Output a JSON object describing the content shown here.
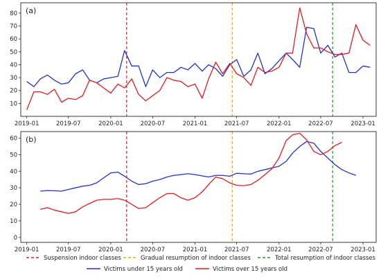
{
  "chart_data": [
    {
      "type": "line",
      "panel_label": "(a)",
      "x_tick_labels": [
        "2019-01",
        "2019-07",
        "2020-01",
        "2020-07",
        "2021-01",
        "2021-07",
        "2022-01",
        "2022-07",
        "2023-01"
      ],
      "x_tick_dates": [
        "2019-01-01",
        "2019-07-01",
        "2020-01-01",
        "2020-07-01",
        "2021-01-01",
        "2021-07-01",
        "2022-01-01",
        "2022-07-01",
        "2023-01-01"
      ],
      "xlim": [
        "2018-12-06",
        "2023-02-27"
      ],
      "ylim": [
        0,
        88
      ],
      "y_ticks": [
        10,
        20,
        30,
        40,
        50,
        60,
        70,
        80
      ],
      "y_tick_labels": [
        "10",
        "20",
        "30",
        "40",
        "50",
        "60",
        "70",
        "80"
      ],
      "vlines": [
        {
          "date": "2020-03-10",
          "color": "#e31a1c"
        },
        {
          "date": "2021-06-12",
          "color": "#f0a500"
        },
        {
          "date": "2022-08-22",
          "color": "#1a9a1a"
        }
      ],
      "series": [
        {
          "name": "Victims under 15 years old",
          "color": "#1f2fd0",
          "points": [
            [
              "2019-01-01",
              27
            ],
            [
              "2019-02-01",
              23
            ],
            [
              "2019-03-01",
              29
            ],
            [
              "2019-04-01",
              32
            ],
            [
              "2019-05-01",
              28
            ],
            [
              "2019-06-01",
              25
            ],
            [
              "2019-07-01",
              26
            ],
            [
              "2019-08-01",
              33
            ],
            [
              "2019-09-01",
              36
            ],
            [
              "2019-10-01",
              28
            ],
            [
              "2019-11-01",
              26
            ],
            [
              "2019-12-01",
              29
            ],
            [
              "2020-01-01",
              30
            ],
            [
              "2020-02-01",
              31
            ],
            [
              "2020-03-01",
              51
            ],
            [
              "2020-04-01",
              39
            ],
            [
              "2020-05-01",
              39
            ],
            [
              "2020-06-01",
              23
            ],
            [
              "2020-07-01",
              36
            ],
            [
              "2020-08-01",
              30
            ],
            [
              "2020-09-01",
              34
            ],
            [
              "2020-10-01",
              34
            ],
            [
              "2020-11-01",
              38
            ],
            [
              "2020-12-01",
              36
            ],
            [
              "2021-01-01",
              41
            ],
            [
              "2021-02-01",
              35
            ],
            [
              "2021-03-01",
              40
            ],
            [
              "2021-04-01",
              37
            ],
            [
              "2021-05-01",
              31
            ],
            [
              "2021-06-01",
              40
            ],
            [
              "2021-07-01",
              44
            ],
            [
              "2021-08-01",
              31
            ],
            [
              "2021-09-01",
              36
            ],
            [
              "2021-10-01",
              49
            ],
            [
              "2021-11-01",
              33
            ],
            [
              "2021-12-01",
              37
            ],
            [
              "2022-01-01",
              43
            ],
            [
              "2022-02-01",
              49
            ],
            [
              "2022-03-01",
              44
            ],
            [
              "2022-04-01",
              38
            ],
            [
              "2022-05-01",
              69
            ],
            [
              "2022-06-01",
              68
            ],
            [
              "2022-07-01",
              49
            ],
            [
              "2022-08-01",
              55
            ],
            [
              "2022-09-01",
              46
            ],
            [
              "2022-10-01",
              49
            ],
            [
              "2022-11-01",
              34
            ],
            [
              "2022-12-01",
              34
            ],
            [
              "2023-01-01",
              39
            ],
            [
              "2023-02-01",
              38
            ]
          ]
        },
        {
          "name": "Victims over 15 years old",
          "color": "#e8171c",
          "points": [
            [
              "2019-01-01",
              5
            ],
            [
              "2019-02-01",
              19
            ],
            [
              "2019-03-01",
              19
            ],
            [
              "2019-04-01",
              17
            ],
            [
              "2019-05-01",
              21
            ],
            [
              "2019-06-01",
              11
            ],
            [
              "2019-07-01",
              14
            ],
            [
              "2019-08-01",
              13
            ],
            [
              "2019-09-01",
              16
            ],
            [
              "2019-10-01",
              28
            ],
            [
              "2019-11-01",
              26
            ],
            [
              "2019-12-01",
              22
            ],
            [
              "2020-01-01",
              18
            ],
            [
              "2020-02-01",
              25
            ],
            [
              "2020-03-01",
              22
            ],
            [
              "2020-04-01",
              29
            ],
            [
              "2020-05-01",
              17
            ],
            [
              "2020-06-01",
              12
            ],
            [
              "2020-07-01",
              16
            ],
            [
              "2020-08-01",
              20
            ],
            [
              "2020-09-01",
              30
            ],
            [
              "2020-10-01",
              28
            ],
            [
              "2020-11-01",
              27
            ],
            [
              "2020-12-01",
              23
            ],
            [
              "2021-01-01",
              25
            ],
            [
              "2021-02-01",
              14
            ],
            [
              "2021-03-01",
              29
            ],
            [
              "2021-04-01",
              42
            ],
            [
              "2021-05-01",
              33
            ],
            [
              "2021-06-01",
              41
            ],
            [
              "2021-07-01",
              33
            ],
            [
              "2021-08-01",
              30
            ],
            [
              "2021-09-01",
              24
            ],
            [
              "2021-10-01",
              38
            ],
            [
              "2021-11-01",
              34
            ],
            [
              "2021-12-01",
              35
            ],
            [
              "2022-01-01",
              38
            ],
            [
              "2022-02-01",
              49
            ],
            [
              "2022-03-01",
              49
            ],
            [
              "2022-04-01",
              84
            ],
            [
              "2022-05-01",
              64
            ],
            [
              "2022-06-01",
              53
            ],
            [
              "2022-07-01",
              53
            ],
            [
              "2022-08-01",
              50
            ],
            [
              "2022-09-01",
              48
            ],
            [
              "2022-10-01",
              48
            ],
            [
              "2022-11-01",
              49
            ],
            [
              "2022-12-01",
              71
            ],
            [
              "2023-01-01",
              59
            ],
            [
              "2023-02-01",
              55
            ]
          ]
        }
      ]
    },
    {
      "type": "line",
      "panel_label": "(b)",
      "x_tick_labels": [
        "2019-01",
        "2019-07",
        "2020-01",
        "2020-07",
        "2021-01",
        "2021-07",
        "2022-01",
        "2022-07",
        "2023-01"
      ],
      "x_tick_dates": [
        "2019-01-01",
        "2019-07-01",
        "2020-01-01",
        "2020-07-01",
        "2021-01-01",
        "2021-07-01",
        "2022-01-01",
        "2022-07-01",
        "2023-01-01"
      ],
      "xlim": [
        "2018-12-06",
        "2023-02-27"
      ],
      "ylim": [
        -3,
        64
      ],
      "y_ticks": [
        0,
        10,
        20,
        30,
        40,
        50,
        60
      ],
      "y_tick_labels": [
        "0",
        "10",
        "20",
        "30",
        "40",
        "50",
        "60"
      ],
      "vlines": [
        {
          "date": "2020-03-10",
          "color": "#e31a1c"
        },
        {
          "date": "2021-06-12",
          "color": "#f0a500"
        },
        {
          "date": "2022-08-22",
          "color": "#1a9a1a"
        }
      ],
      "series": [
        {
          "name": "Victims under 15 years old",
          "color": "#1f2fd0",
          "points": [
            [
              "2019-03-01",
              28
            ],
            [
              "2019-04-01",
              28.3
            ],
            [
              "2019-05-01",
              28.2
            ],
            [
              "2019-06-01",
              28
            ],
            [
              "2019-07-01",
              29
            ],
            [
              "2019-08-01",
              30
            ],
            [
              "2019-09-01",
              31
            ],
            [
              "2019-10-01",
              31.5
            ],
            [
              "2019-11-01",
              33
            ],
            [
              "2019-12-01",
              36
            ],
            [
              "2020-01-01",
              39
            ],
            [
              "2020-02-01",
              39.5
            ],
            [
              "2020-03-01",
              37
            ],
            [
              "2020-04-01",
              34
            ],
            [
              "2020-05-01",
              32
            ],
            [
              "2020-06-01",
              32.5
            ],
            [
              "2020-07-01",
              34
            ],
            [
              "2020-08-01",
              35
            ],
            [
              "2020-09-01",
              36.5
            ],
            [
              "2020-10-01",
              37.5
            ],
            [
              "2020-11-01",
              38
            ],
            [
              "2020-12-01",
              38.5
            ],
            [
              "2021-01-01",
              38
            ],
            [
              "2021-02-01",
              37.2
            ],
            [
              "2021-03-01",
              36.5
            ],
            [
              "2021-04-01",
              37.5
            ],
            [
              "2021-05-01",
              37.5
            ],
            [
              "2021-06-01",
              37
            ],
            [
              "2021-07-01",
              38.8
            ],
            [
              "2021-08-01",
              38.5
            ],
            [
              "2021-09-01",
              38.3
            ],
            [
              "2021-10-01",
              40
            ],
            [
              "2021-11-01",
              41
            ],
            [
              "2021-12-01",
              42
            ],
            [
              "2022-01-01",
              43
            ],
            [
              "2022-02-01",
              46
            ],
            [
              "2022-03-01",
              51
            ],
            [
              "2022-04-01",
              55
            ],
            [
              "2022-05-01",
              58
            ],
            [
              "2022-06-01",
              57
            ],
            [
              "2022-07-01",
              52
            ],
            [
              "2022-08-01",
              48
            ],
            [
              "2022-09-01",
              44
            ],
            [
              "2022-10-01",
              41
            ],
            [
              "2022-11-01",
              39
            ],
            [
              "2022-12-01",
              37.5
            ]
          ]
        },
        {
          "name": "Victims over 15 years old",
          "color": "#e8171c",
          "points": [
            [
              "2019-03-01",
              17
            ],
            [
              "2019-04-01",
              18
            ],
            [
              "2019-05-01",
              16.5
            ],
            [
              "2019-06-01",
              15.5
            ],
            [
              "2019-07-01",
              14.5
            ],
            [
              "2019-08-01",
              15.5
            ],
            [
              "2019-09-01",
              18.5
            ],
            [
              "2019-10-01",
              20.5
            ],
            [
              "2019-11-01",
              22.5
            ],
            [
              "2019-12-01",
              23
            ],
            [
              "2020-01-01",
              23
            ],
            [
              "2020-02-01",
              23.5
            ],
            [
              "2020-03-01",
              22.5
            ],
            [
              "2020-04-01",
              20
            ],
            [
              "2020-05-01",
              17.5
            ],
            [
              "2020-06-01",
              18
            ],
            [
              "2020-07-01",
              21
            ],
            [
              "2020-08-01",
              24
            ],
            [
              "2020-09-01",
              26.5
            ],
            [
              "2020-10-01",
              26.5
            ],
            [
              "2020-11-01",
              24
            ],
            [
              "2020-12-01",
              22.5
            ],
            [
              "2021-01-01",
              24
            ],
            [
              "2021-02-01",
              27.5
            ],
            [
              "2021-03-01",
              32
            ],
            [
              "2021-04-01",
              36.5
            ],
            [
              "2021-05-01",
              35.5
            ],
            [
              "2021-06-01",
              33
            ],
            [
              "2021-07-01",
              31.5
            ],
            [
              "2021-08-01",
              31.3
            ],
            [
              "2021-09-01",
              32
            ],
            [
              "2021-10-01",
              34.5
            ],
            [
              "2021-11-01",
              38
            ],
            [
              "2021-12-01",
              41.5
            ],
            [
              "2022-01-01",
              48
            ],
            [
              "2022-02-01",
              58.5
            ],
            [
              "2022-03-01",
              62
            ],
            [
              "2022-04-01",
              63
            ],
            [
              "2022-05-01",
              59
            ],
            [
              "2022-06-01",
              52
            ],
            [
              "2022-07-01",
              50
            ],
            [
              "2022-08-01",
              52
            ],
            [
              "2022-09-01",
              55.5
            ],
            [
              "2022-10-01",
              57.5
            ]
          ]
        }
      ]
    }
  ],
  "legend": {
    "position": "bottom",
    "entries": [
      {
        "label": "Suspension indoor classes",
        "color": "#e31a1c",
        "style": "dashed"
      },
      {
        "label": "Gradual resumption of indoor classes",
        "color": "#f0a500",
        "style": "dashed"
      },
      {
        "label": "Total resumption of indoor classes",
        "color": "#1a9a1a",
        "style": "dashed"
      },
      {
        "label": "Victims under 15 years old",
        "color": "#1f2fd0",
        "style": "solid"
      },
      {
        "label": "Victims over 15 years old",
        "color": "#e8171c",
        "style": "solid"
      }
    ]
  }
}
